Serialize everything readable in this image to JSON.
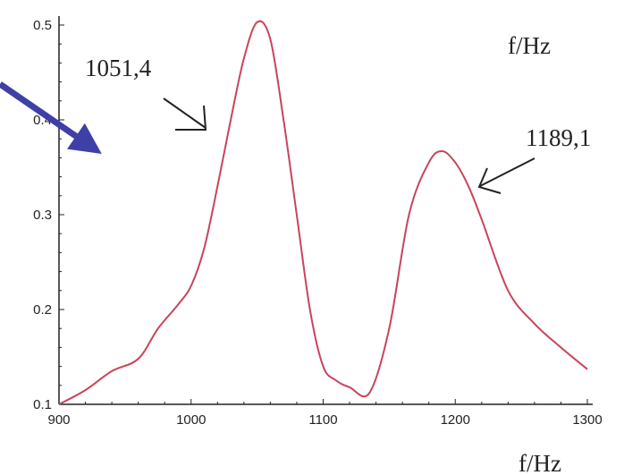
{
  "chart_data": {
    "type": "line",
    "title": "",
    "xlabel": "f/Hz",
    "ylabel": "",
    "top_right_label": "f/Hz",
    "xlim": [
      900,
      1300
    ],
    "ylim": [
      0.1,
      0.5
    ],
    "x_ticks": [
      900,
      1000,
      1100,
      1200,
      1300
    ],
    "y_ticks": [
      0.1,
      0.2,
      0.3,
      0.4,
      0.5
    ],
    "x_tick_labels": [
      "900",
      "1000",
      "1100",
      "1200",
      "1300"
    ],
    "y_tick_labels": [
      "0.1",
      "0.2",
      "0.3",
      "0.4",
      "0.5"
    ],
    "grid": false,
    "series": [
      {
        "color": "#c8445a",
        "points": [
          [
            900,
            0.1
          ],
          [
            920,
            0.115
          ],
          [
            940,
            0.135
          ],
          [
            960,
            0.148
          ],
          [
            975,
            0.18
          ],
          [
            990,
            0.205
          ],
          [
            1000,
            0.225
          ],
          [
            1010,
            0.265
          ],
          [
            1020,
            0.33
          ],
          [
            1030,
            0.4
          ],
          [
            1040,
            0.465
          ],
          [
            1050,
            0.503
          ],
          [
            1060,
            0.485
          ],
          [
            1070,
            0.4
          ],
          [
            1080,
            0.3
          ],
          [
            1090,
            0.2
          ],
          [
            1100,
            0.14
          ],
          [
            1110,
            0.125
          ],
          [
            1120,
            0.118
          ],
          [
            1135,
            0.112
          ],
          [
            1150,
            0.18
          ],
          [
            1165,
            0.3
          ],
          [
            1180,
            0.355
          ],
          [
            1190,
            0.367
          ],
          [
            1200,
            0.355
          ],
          [
            1210,
            0.33
          ],
          [
            1220,
            0.295
          ],
          [
            1240,
            0.22
          ],
          [
            1260,
            0.185
          ],
          [
            1280,
            0.16
          ],
          [
            1300,
            0.137
          ]
        ]
      }
    ],
    "annotations": [
      {
        "text": "1051,4",
        "x": 1051.4
      },
      {
        "text": "1189,1",
        "x": 1189.1
      }
    ]
  },
  "colors": {
    "line": "#c8445a",
    "axis": "#222222",
    "arrow_blue": "#3f3fa8"
  }
}
